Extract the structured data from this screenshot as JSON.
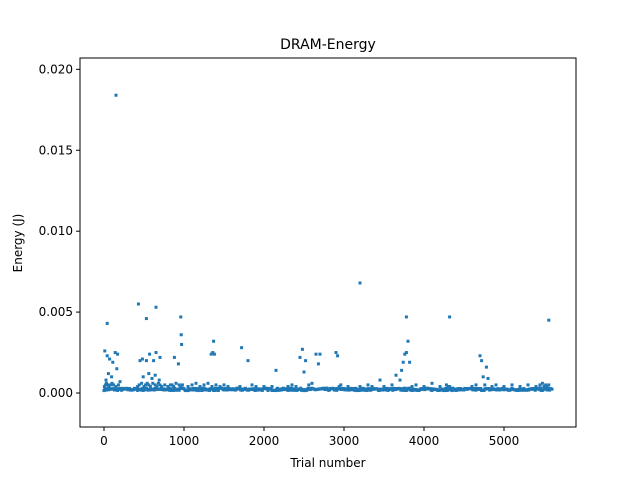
{
  "chart_data": {
    "type": "scatter",
    "title": "DRAM-Energy",
    "xlabel": "Trial number",
    "ylabel": "Energy (J)",
    "xlim": [
      -300,
      5900
    ],
    "ylim": [
      -0.0021,
      0.0207
    ],
    "xticks": [
      0,
      1000,
      2000,
      3000,
      4000,
      5000
    ],
    "xtick_labels": [
      "0",
      "1000",
      "2000",
      "3000",
      "4000",
      "5000"
    ],
    "yticks": [
      0.0,
      0.005,
      0.01,
      0.015,
      0.02
    ],
    "ytick_labels": [
      "0.000",
      "0.005",
      "0.010",
      "0.015",
      "0.020"
    ],
    "grid": false,
    "marker_color": "#1f77b4",
    "baseline": {
      "x_start": 0,
      "x_end": 5600,
      "y_min": 0.00015,
      "y_max": 0.0003
    },
    "outliers": {
      "x": [
        5,
        20,
        30,
        45,
        60,
        80,
        100,
        120,
        150,
        180,
        10,
        40,
        70,
        110,
        140,
        170,
        25,
        55,
        95,
        160,
        200,
        420,
        440,
        470,
        500,
        520,
        540,
        560,
        580,
        610,
        640,
        660,
        680,
        700,
        720,
        760,
        800,
        850,
        450,
        480,
        530,
        570,
        620,
        650,
        700,
        490,
        560,
        600,
        640,
        690,
        830,
        870,
        900,
        940,
        960,
        980,
        880,
        930,
        970,
        1050,
        1100,
        1150,
        1200,
        1250,
        1300,
        1350,
        1400,
        1450,
        1500,
        1550,
        1340,
        1360,
        1380,
        1700,
        1720,
        1800,
        1850,
        1900,
        2000,
        2100,
        2150,
        2300,
        2350,
        2400,
        2450,
        2480,
        2500,
        2520,
        2560,
        2600,
        2650,
        2680,
        2700,
        2900,
        2920,
        2940,
        2960,
        3050,
        3200,
        3300,
        3350,
        3450,
        3500,
        3600,
        3650,
        3700,
        3720,
        3740,
        3760,
        3780,
        3800,
        3820,
        3850,
        3900,
        4000,
        4100,
        4200,
        4280,
        4300,
        4320,
        4600,
        4650,
        4700,
        4720,
        4740,
        4760,
        4780,
        4800,
        4850,
        4900,
        5000,
        5100,
        5200,
        5300,
        5400,
        5450,
        5480,
        5500,
        5520,
        5540,
        5560
      ],
      "y": [
        0.0004,
        0.0005,
        0.0006,
        0.0005,
        0.0004,
        0.0005,
        0.0006,
        0.0005,
        0.0004,
        0.0005,
        0.0026,
        0.0023,
        0.0021,
        0.0019,
        0.0025,
        0.0024,
        0.0008,
        0.0012,
        0.001,
        0.0015,
        0.0007,
        0.0004,
        0.0005,
        0.0006,
        0.0004,
        0.0005,
        0.0006,
        0.0005,
        0.0004,
        0.0006,
        0.0005,
        0.0004,
        0.0006,
        0.0005,
        0.0004,
        0.0005,
        0.0004,
        0.0005,
        0.002,
        0.0021,
        0.002,
        0.0024,
        0.002,
        0.0025,
        0.0022,
        0.001,
        0.0012,
        0.0009,
        0.0011,
        0.0008,
        0.0005,
        0.0004,
        0.0006,
        0.0005,
        0.0004,
        0.0005,
        0.0022,
        0.0018,
        0.003,
        0.0004,
        0.0005,
        0.0006,
        0.0004,
        0.0005,
        0.0006,
        0.0004,
        0.0005,
        0.0004,
        0.0005,
        0.0004,
        0.0024,
        0.0025,
        0.0024,
        0.0004,
        0.0028,
        0.002,
        0.0005,
        0.0004,
        0.0004,
        0.0004,
        0.0014,
        0.0004,
        0.0005,
        0.0004,
        0.0022,
        0.0027,
        0.0013,
        0.002,
        0.0005,
        0.0006,
        0.0024,
        0.0018,
        0.0024,
        0.0025,
        0.0023,
        0.0004,
        0.0005,
        0.0004,
        0.0004,
        0.0005,
        0.0004,
        0.0008,
        0.0004,
        0.0005,
        0.0011,
        0.0008,
        0.0014,
        0.0019,
        0.0024,
        0.0025,
        0.0032,
        0.0019,
        0.0004,
        0.0005,
        0.0004,
        0.0006,
        0.0004,
        0.0005,
        0.0004,
        0.0004,
        0.0004,
        0.0005,
        0.0023,
        0.002,
        0.001,
        0.0005,
        0.0016,
        0.0009,
        0.0004,
        0.0005,
        0.0004,
        0.0005,
        0.0004,
        0.0005,
        0.0004,
        0.0005,
        0.0006,
        0.0004,
        0.0005,
        0.0004,
        0.0005
      ]
    },
    "notable_points": {
      "x": [
        150,
        40,
        430,
        530,
        650,
        960,
        965,
        1370,
        3200,
        3780,
        4320,
        5560
      ],
      "y": [
        0.0184,
        0.0043,
        0.0055,
        0.0046,
        0.0053,
        0.0047,
        0.0036,
        0.0032,
        0.0068,
        0.0047,
        0.0047,
        0.0045
      ]
    }
  }
}
